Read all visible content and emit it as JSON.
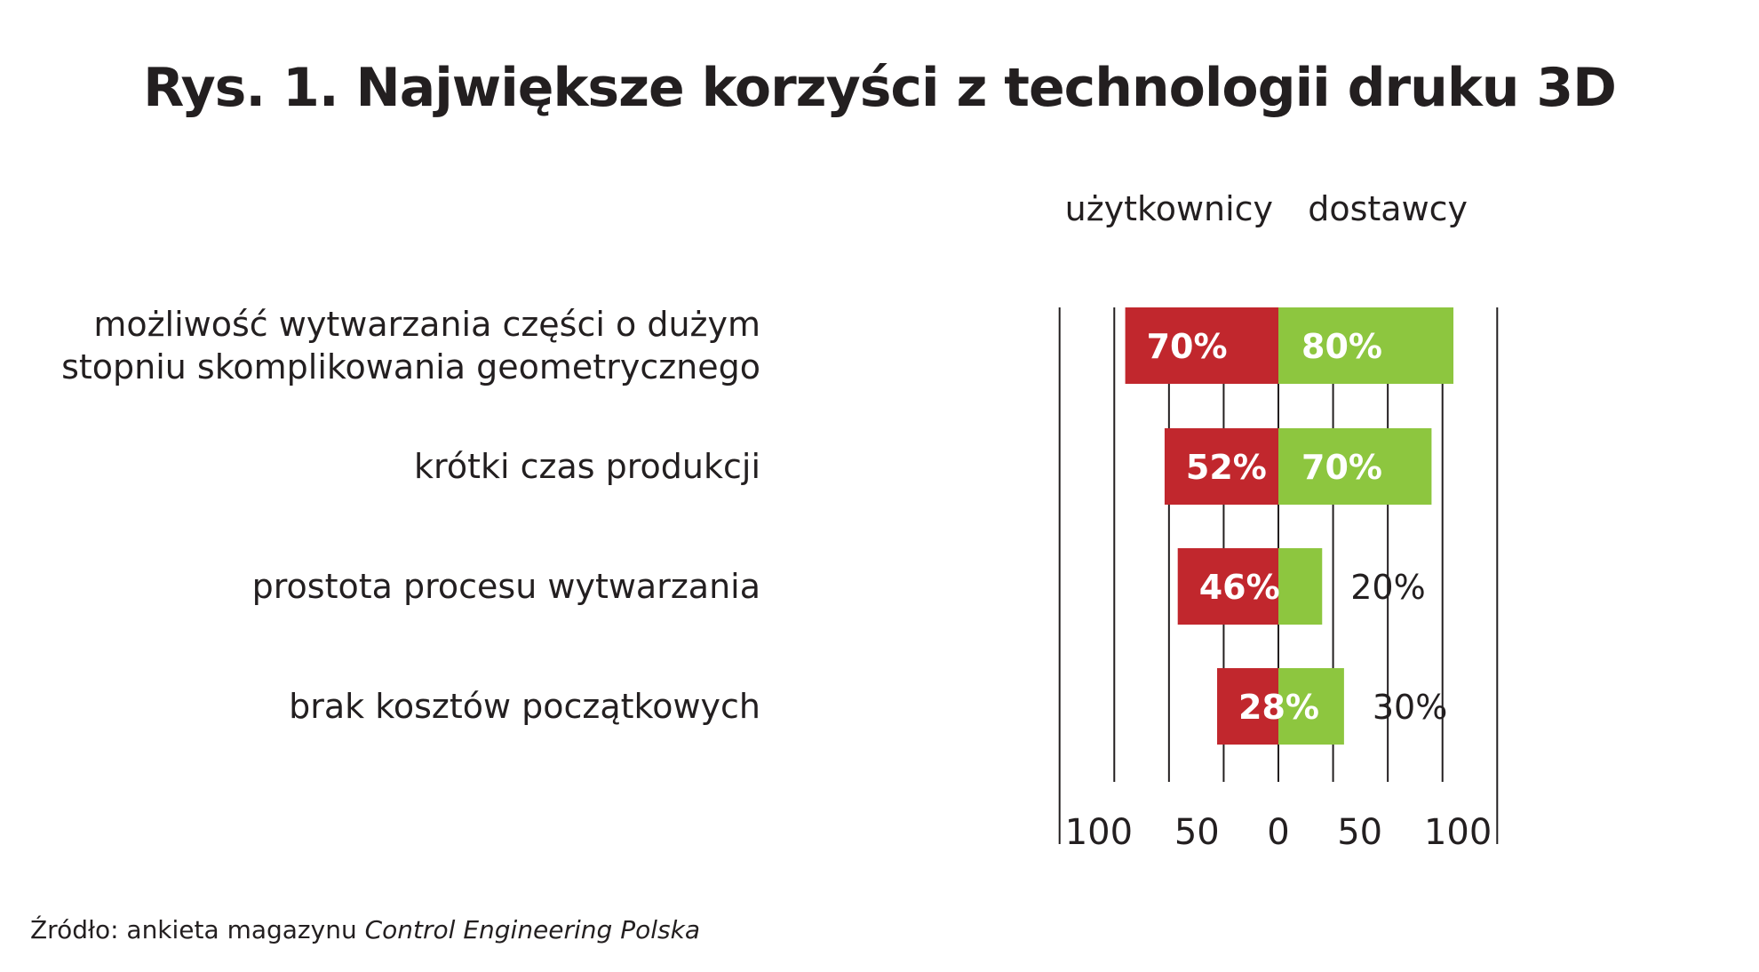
{
  "chart_data": {
    "type": "bar",
    "title": "Rys. 1. Największe korzyści z technologii druku 3D",
    "orientation": "horizontal-diverging",
    "categories": [
      [
        "możliwość wytwarzania części o dużym",
        "stopniu skomplikowania geometrycznego"
      ],
      [
        "krótki czas produkcji"
      ],
      [
        "prostota procesu wytwarzania"
      ],
      [
        "brak kosztów początkowych"
      ]
    ],
    "series": [
      {
        "name": "użytkownicy",
        "side": "left",
        "color": "#c1272d",
        "values": [
          70,
          52,
          46,
          28
        ],
        "value_labels": [
          "70%",
          "52%",
          "46%",
          "28%"
        ]
      },
      {
        "name": "dostawcy",
        "side": "right",
        "color": "#8dc63f",
        "values": [
          80,
          70,
          20,
          30
        ],
        "value_labels": [
          "80%",
          "70%",
          "20%",
          "30%"
        ]
      }
    ],
    "xlim": [
      -100,
      100
    ],
    "tick_labels": [
      "100",
      "50",
      "0",
      "50",
      "100"
    ],
    "grid": true,
    "legend": "top"
  },
  "source": {
    "prefix": "Źródło: ankieta magazynu ",
    "publication": "Control Engineering Polska"
  }
}
